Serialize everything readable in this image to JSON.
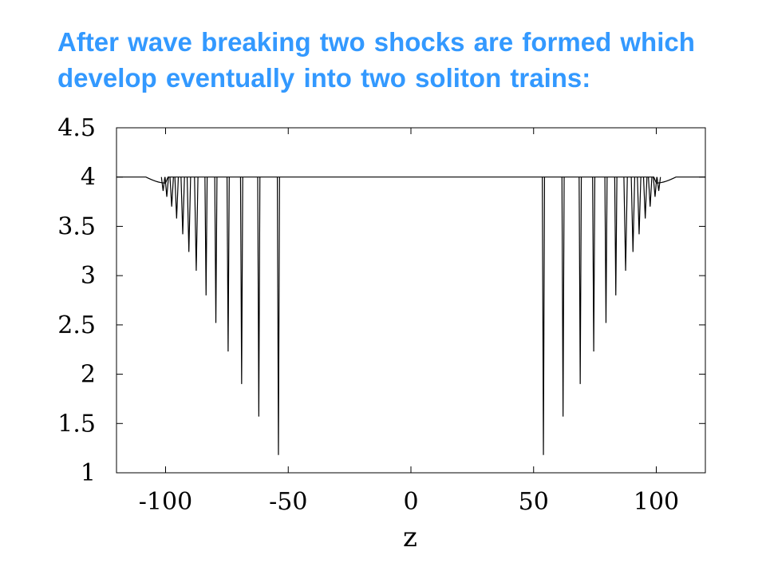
{
  "slide": {
    "title_lines": [
      "After wave breaking two shocks are formed which",
      "develop eventually into two soliton trains:"
    ],
    "title_color": "#3399ff"
  },
  "chart_data": {
    "type": "line",
    "title": "",
    "xlabel": "z",
    "ylabel": "",
    "xlim": [
      -120,
      120
    ],
    "ylim": [
      1,
      4.5
    ],
    "xticks": [
      -100,
      -50,
      0,
      50,
      100
    ],
    "xtick_labels": [
      "-100",
      "-50",
      "0",
      "50",
      "100"
    ],
    "yticks": [
      1,
      1.5,
      2,
      2.5,
      3,
      3.5,
      4,
      4.5
    ],
    "ytick_labels": [
      "1",
      "1.5",
      "2",
      "2.5",
      "3",
      "3.5",
      "4",
      "4.5"
    ],
    "grid": false,
    "baseline": 4,
    "line_color": "#000000",
    "envelope_edges": [
      -108,
      108
    ],
    "solitons": [
      {
        "z": -54,
        "min": 1.18
      },
      {
        "z": -62,
        "min": 1.57
      },
      {
        "z": -69,
        "min": 1.9
      },
      {
        "z": -74.5,
        "min": 2.23
      },
      {
        "z": -79.5,
        "min": 2.52
      },
      {
        "z": -83.5,
        "min": 2.8
      },
      {
        "z": -87.5,
        "min": 3.05
      },
      {
        "z": -90.5,
        "min": 3.24
      },
      {
        "z": -93,
        "min": 3.42
      },
      {
        "z": -95.5,
        "min": 3.58
      },
      {
        "z": -97.5,
        "min": 3.7
      },
      {
        "z": -99.5,
        "min": 3.8
      },
      {
        "z": -101,
        "min": 3.86
      },
      {
        "z": 54,
        "min": 1.18
      },
      {
        "z": 62,
        "min": 1.57
      },
      {
        "z": 69,
        "min": 1.9
      },
      {
        "z": 74.5,
        "min": 2.23
      },
      {
        "z": 79.5,
        "min": 2.52
      },
      {
        "z": 83.5,
        "min": 2.8
      },
      {
        "z": 87.5,
        "min": 3.05
      },
      {
        "z": 90.5,
        "min": 3.24
      },
      {
        "z": 93,
        "min": 3.42
      },
      {
        "z": 95.5,
        "min": 3.58
      },
      {
        "z": 97.5,
        "min": 3.7
      },
      {
        "z": 99.5,
        "min": 3.8
      },
      {
        "z": 101,
        "min": 3.86
      }
    ]
  }
}
